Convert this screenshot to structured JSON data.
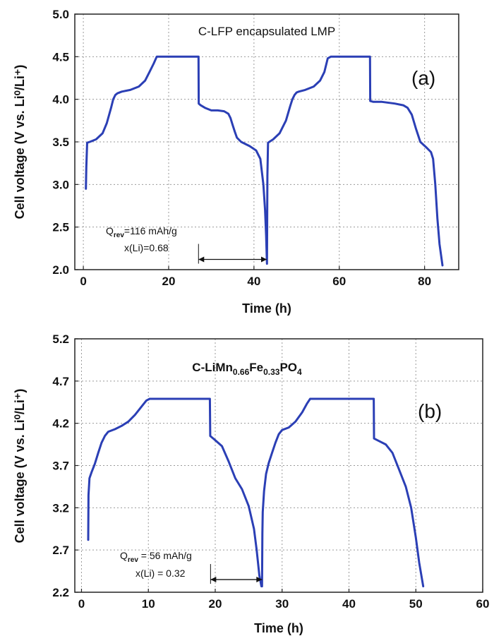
{
  "chart_data": [
    {
      "type": "line",
      "panel_label": "(a)",
      "title": "C-LFP encapsulated LMP",
      "xlabel": "Time (h)",
      "ylabel": "Cell voltage (V vs. Li⁰/Li⁺)",
      "xlim": [
        -2,
        88
      ],
      "ylim": [
        2.0,
        5.0
      ],
      "xticks": [
        0,
        20,
        40,
        60,
        80
      ],
      "yticks": [
        2.0,
        2.5,
        3.0,
        3.5,
        4.0,
        4.5,
        5.0
      ],
      "ytick_labels": [
        "2.0",
        "2.5",
        "3.0",
        "3.5",
        "4.0",
        "4.5",
        "5.0"
      ],
      "grid": true,
      "annotation": {
        "line1_main": "Q",
        "line1_sub": "rev",
        "line1_rest": "=116 mAh/g",
        "line2": "x(Li)=0.68",
        "arrow_x": [
          27,
          43
        ],
        "arrow_y": 2.12
      },
      "series": [
        {
          "color": "#2b3fb5",
          "x": [
            0.6,
            0.7,
            0.9,
            1.5,
            3,
            4.5,
            5.5,
            6.5,
            7,
            7.5,
            8,
            9,
            11,
            13,
            14.5,
            15.5,
            16.5,
            17.2,
            18,
            27,
            27.05,
            27.5,
            28.5,
            30,
            31.5,
            33,
            34,
            34.5,
            35,
            35.5,
            36,
            37,
            39,
            40.5,
            41.5,
            42.2,
            42.6,
            42.85,
            43.0,
            43.05,
            43.15,
            43.3,
            43.6,
            44.5,
            46,
            47.5,
            48.5,
            49,
            49.5,
            50,
            50.5,
            52,
            54,
            55.5,
            56.5,
            57.3,
            58,
            67.2,
            67.25,
            68,
            70,
            73,
            75,
            76,
            77,
            78,
            79,
            80.5,
            81.5,
            82,
            82.5,
            83,
            83.5,
            84.2
          ],
          "y": [
            2.95,
            3.2,
            3.49,
            3.5,
            3.53,
            3.6,
            3.72,
            3.9,
            4.0,
            4.05,
            4.07,
            4.09,
            4.11,
            4.15,
            4.22,
            4.32,
            4.42,
            4.5,
            4.5,
            4.5,
            3.95,
            3.93,
            3.9,
            3.87,
            3.87,
            3.86,
            3.83,
            3.78,
            3.7,
            3.62,
            3.55,
            3.5,
            3.45,
            3.4,
            3.3,
            3.0,
            2.7,
            2.4,
            2.15,
            2.07,
            3.1,
            3.49,
            3.5,
            3.53,
            3.6,
            3.75,
            3.92,
            4.0,
            4.05,
            4.08,
            4.09,
            4.11,
            4.15,
            4.22,
            4.32,
            4.48,
            4.5,
            4.5,
            3.98,
            3.97,
            3.97,
            3.95,
            3.93,
            3.9,
            3.82,
            3.65,
            3.5,
            3.43,
            3.38,
            3.3,
            3.0,
            2.6,
            2.3,
            2.05
          ]
        }
      ]
    },
    {
      "type": "line",
      "panel_label": "(b)",
      "title_parts": {
        "p1": "C-LiMn",
        "s1": "0.66",
        "p2": "Fe",
        "s2": "0.33",
        "p3": "PO",
        "s3": "4"
      },
      "xlabel": "Time (h)",
      "ylabel": "Cell voltage (V vs. Li⁰/Li⁺)",
      "xlim": [
        -1,
        60
      ],
      "ylim": [
        2.2,
        5.2
      ],
      "xticks": [
        0,
        10,
        20,
        30,
        40,
        50,
        60
      ],
      "yticks": [
        2.2,
        2.7,
        3.2,
        3.7,
        4.2,
        4.7,
        5.2
      ],
      "ytick_labels": [
        "2.2",
        "2.7",
        "3.2",
        "3.7",
        "4.2",
        "4.7",
        "5.2"
      ],
      "grid": true,
      "annotation": {
        "line1_main": "Q",
        "line1_sub": "rev",
        "line1_rest": " = 56 mAh/g",
        "line2": "x(Li) = 0.32",
        "arrow_x": [
          19.3,
          27
        ],
        "arrow_y": 2.35
      },
      "series": [
        {
          "color": "#2b3fb5",
          "x": [
            1.0,
            1.05,
            1.2,
            1.5,
            2,
            2.5,
            3,
            3.5,
            4,
            5,
            6,
            7,
            8,
            9,
            9.7,
            10.2,
            19.2,
            19.25,
            20,
            21,
            22,
            23,
            24,
            25,
            25.8,
            26.2,
            26.6,
            26.9,
            27.0,
            27.05,
            27.1,
            27.3,
            27.6,
            28,
            28.5,
            29,
            29.5,
            30,
            31,
            32,
            33,
            33.7,
            34.2,
            43.7,
            43.75,
            44.5,
            45.5,
            46.5,
            47.5,
            48.5,
            49.3,
            50,
            50.5,
            51.1
          ],
          "y": [
            2.82,
            3.35,
            3.55,
            3.62,
            3.72,
            3.85,
            3.97,
            4.05,
            4.1,
            4.13,
            4.17,
            4.22,
            4.3,
            4.4,
            4.47,
            4.49,
            4.49,
            4.05,
            4.0,
            3.93,
            3.75,
            3.55,
            3.42,
            3.22,
            2.95,
            2.7,
            2.4,
            2.27,
            2.27,
            2.9,
            3.15,
            3.4,
            3.6,
            3.73,
            3.85,
            3.97,
            4.07,
            4.12,
            4.15,
            4.22,
            4.33,
            4.43,
            4.49,
            4.49,
            4.02,
            3.99,
            3.95,
            3.85,
            3.65,
            3.45,
            3.2,
            2.85,
            2.55,
            2.27
          ]
        }
      ]
    }
  ]
}
